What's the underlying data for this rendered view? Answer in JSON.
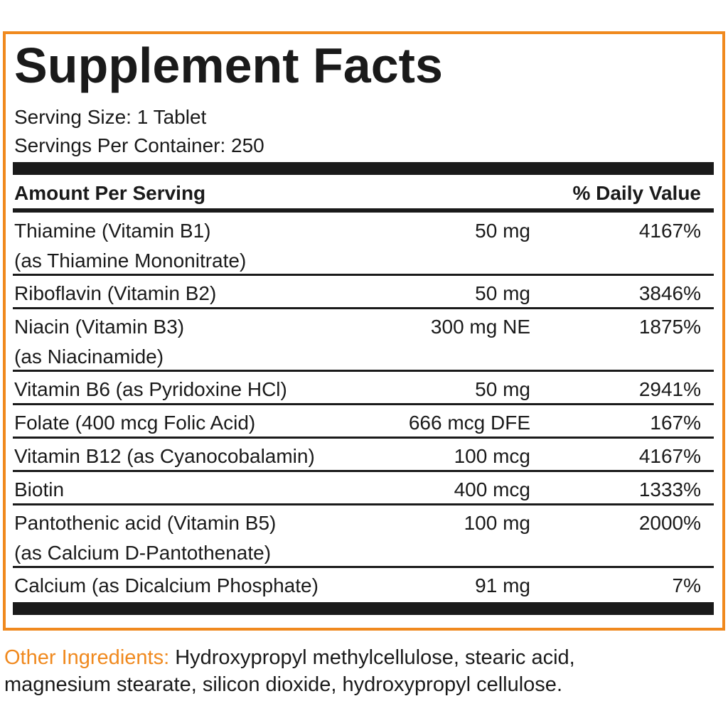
{
  "title": "Supplement Facts",
  "serving_size": "Serving Size: 1 Tablet",
  "servings_per_container": "Servings Per Container: 250",
  "table": {
    "header": {
      "amount": "Amount Per Serving",
      "daily_value": "% Daily Value"
    },
    "rows": [
      {
        "lines": [
          "Thiamine (Vitamin B1)",
          "(as Thiamine Mononitrate)"
        ],
        "amount": "50 mg",
        "daily_value": "4167%"
      },
      {
        "lines": [
          "Riboflavin (Vitamin B2)"
        ],
        "amount": "50 mg",
        "daily_value": "3846%"
      },
      {
        "lines": [
          "Niacin (Vitamin B3)",
          "(as Niacinamide)"
        ],
        "amount": "300 mg NE",
        "daily_value": "1875%"
      },
      {
        "lines": [
          "Vitamin B6 (as Pyridoxine HCl)"
        ],
        "amount": "50 mg",
        "daily_value": "2941%"
      },
      {
        "lines": [
          "Folate (400 mcg Folic Acid)"
        ],
        "amount": "666 mcg DFE",
        "daily_value": "167%"
      },
      {
        "lines": [
          "Vitamin B12 (as Cyanocobalamin)"
        ],
        "amount": "100 mcg",
        "daily_value": "4167%"
      },
      {
        "lines": [
          "Biotin"
        ],
        "amount": "400 mcg",
        "daily_value": "1333%"
      },
      {
        "lines": [
          "Pantothenic acid (Vitamin B5)",
          "(as Calcium D-Pantothenate)"
        ],
        "amount": "100 mg",
        "daily_value": "2000%"
      },
      {
        "lines": [
          "Calcium (as Dicalcium Phosphate)"
        ],
        "amount": "91 mg",
        "daily_value": "7%"
      }
    ]
  },
  "other_ingredients": {
    "label": "Other Ingredients:",
    "lines": [
      "Hydroxypropyl methylcellulose, stearic acid,",
      "magnesium stearate, silicon dioxide, hydroxypropyl cellulose."
    ]
  }
}
